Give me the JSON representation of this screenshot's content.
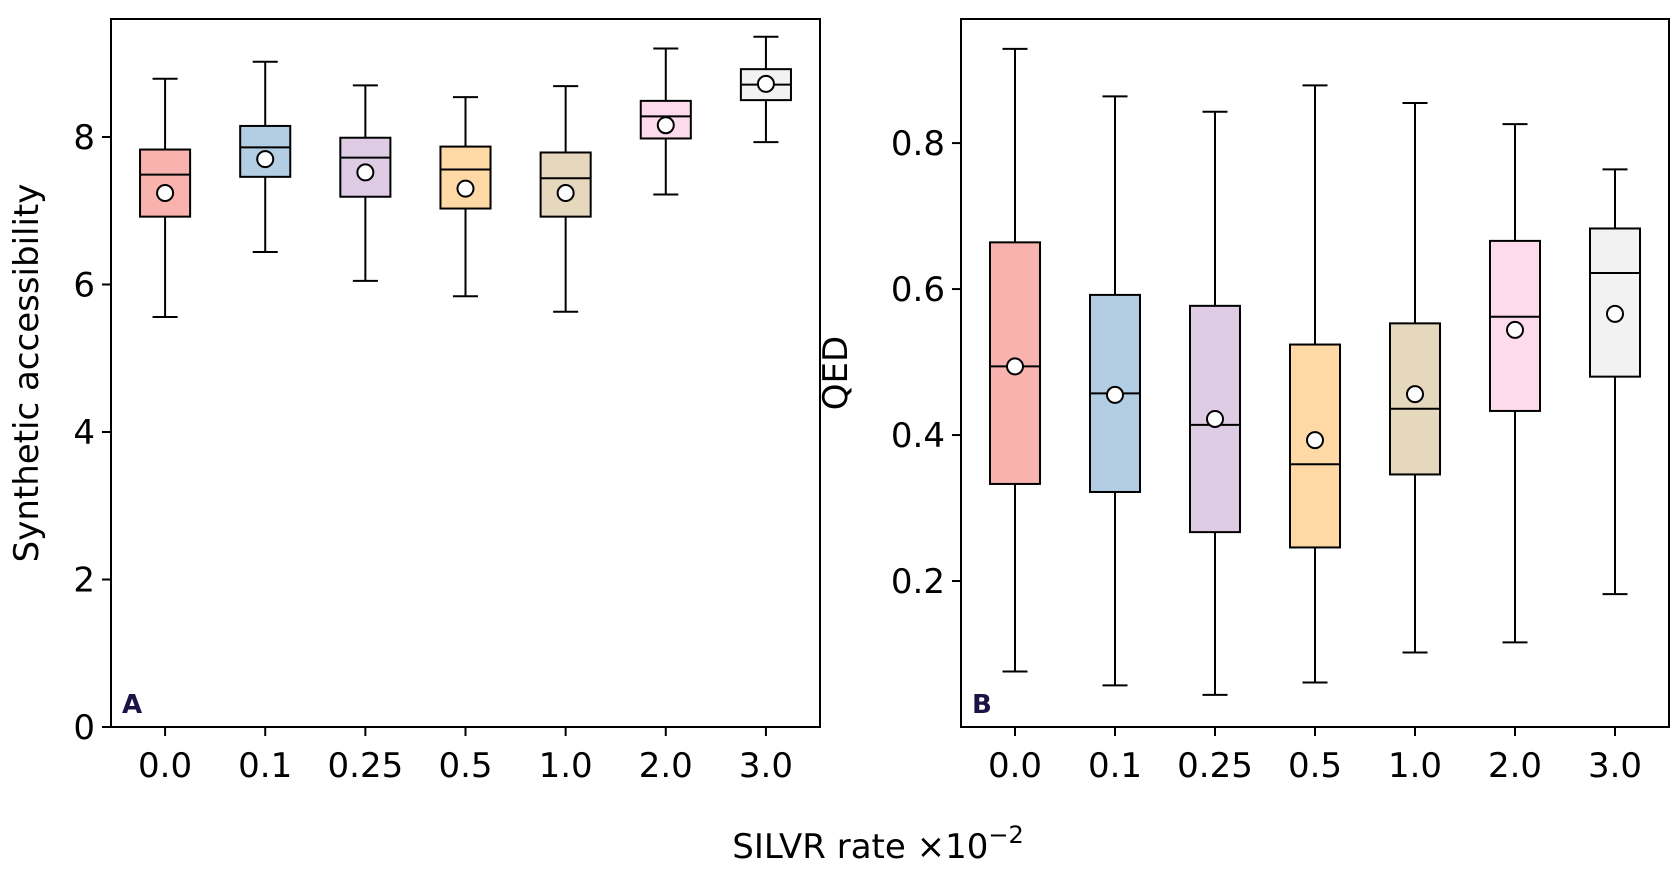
{
  "figure": {
    "xlabel": "SILVR rate ×10",
    "xlabel_exponent": "−2"
  },
  "chart_data": [
    {
      "type": "box",
      "panel_label": "A",
      "ylabel": "Synthetic accessibility",
      "categories": [
        "0.0",
        "0.1",
        "0.25",
        "0.5",
        "1.0",
        "2.0",
        "3.0"
      ],
      "colors": [
        "#f8b3ae",
        "#b3cde3",
        "#decbe4",
        "#fed9a6",
        "#e5d8bd",
        "#fddaec",
        "#f2f2f2"
      ],
      "ylim": [
        0,
        9.6
      ],
      "yticks": [
        0,
        2,
        4,
        6,
        8
      ],
      "boxes": [
        {
          "whisker_low": 5.56,
          "q1": 6.92,
          "median": 7.49,
          "q3": 7.83,
          "whisker_high": 8.79,
          "mean": 7.24
        },
        {
          "whisker_low": 6.44,
          "q1": 7.46,
          "median": 7.86,
          "q3": 8.15,
          "whisker_high": 9.02,
          "mean": 7.7
        },
        {
          "whisker_low": 6.05,
          "q1": 7.19,
          "median": 7.72,
          "q3": 7.99,
          "whisker_high": 8.7,
          "mean": 7.52
        },
        {
          "whisker_low": 5.84,
          "q1": 7.03,
          "median": 7.56,
          "q3": 7.87,
          "whisker_high": 8.54,
          "mean": 7.3
        },
        {
          "whisker_low": 5.63,
          "q1": 6.92,
          "median": 7.44,
          "q3": 7.79,
          "whisker_high": 8.69,
          "mean": 7.24
        },
        {
          "whisker_low": 7.22,
          "q1": 7.98,
          "median": 8.28,
          "q3": 8.49,
          "whisker_high": 9.2,
          "mean": 8.16
        },
        {
          "whisker_low": 7.93,
          "q1": 8.5,
          "median": 8.71,
          "q3": 8.92,
          "whisker_high": 9.36,
          "mean": 8.72
        }
      ]
    },
    {
      "type": "box",
      "panel_label": "B",
      "ylabel": "QED",
      "categories": [
        "0.0",
        "0.1",
        "0.25",
        "0.5",
        "1.0",
        "2.0",
        "3.0"
      ],
      "colors": [
        "#f8b3ae",
        "#b3cde3",
        "#decbe4",
        "#fed9a6",
        "#e5d8bd",
        "#fddaec",
        "#f2f2f2"
      ],
      "ylim": [
        0.0,
        0.97
      ],
      "yticks": [
        0.2,
        0.4,
        0.6,
        0.8
      ],
      "ytick_labels": [
        "0.2",
        "0.4",
        "0.6",
        "0.8"
      ],
      "boxes": [
        {
          "whisker_low": 0.076,
          "q1": 0.333,
          "median": 0.494,
          "q3": 0.664,
          "whisker_high": 0.929,
          "mean": 0.494
        },
        {
          "whisker_low": 0.057,
          "q1": 0.322,
          "median": 0.457,
          "q3": 0.592,
          "whisker_high": 0.864,
          "mean": 0.455
        },
        {
          "whisker_low": 0.044,
          "q1": 0.267,
          "median": 0.414,
          "q3": 0.577,
          "whisker_high": 0.843,
          "mean": 0.422
        },
        {
          "whisker_low": 0.061,
          "q1": 0.246,
          "median": 0.36,
          "q3": 0.524,
          "whisker_high": 0.879,
          "mean": 0.393
        },
        {
          "whisker_low": 0.102,
          "q1": 0.346,
          "median": 0.436,
          "q3": 0.553,
          "whisker_high": 0.855,
          "mean": 0.456
        },
        {
          "whisker_low": 0.116,
          "q1": 0.433,
          "median": 0.562,
          "q3": 0.666,
          "whisker_high": 0.826,
          "mean": 0.544
        },
        {
          "whisker_low": 0.182,
          "q1": 0.48,
          "median": 0.622,
          "q3": 0.683,
          "whisker_high": 0.764,
          "mean": 0.566
        }
      ]
    }
  ]
}
